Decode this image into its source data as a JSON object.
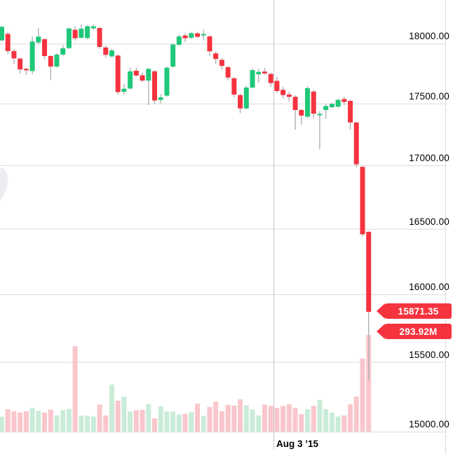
{
  "chart": {
    "date_axis_label": "Aug 3 ’15",
    "price_tag": "15871.35",
    "volume_tag": "293.92M",
    "price_ticks": [
      {
        "label": "18000.00",
        "value": 18000
      },
      {
        "label": "17500.00",
        "value": 17500
      },
      {
        "label": "17000.00",
        "value": 17000
      },
      {
        "label": "16500.00",
        "value": 16500
      },
      {
        "label": "16000.00",
        "value": 16000
      },
      {
        "label": "15500.00",
        "value": 15500
      },
      {
        "label": "15000.00",
        "value": 15000
      }
    ]
  },
  "colors": {
    "up": "#1fc878",
    "down": "#f5333f",
    "vol_up": "#c9ecd8",
    "vol_down": "#f9c6cc",
    "wick": "#b0b0b5",
    "grid": "#d9d9d9",
    "vgrid": "#c6c6c9",
    "tag_bg": "#f5333f",
    "tag_text": "#ffffff",
    "label_text": "#000000",
    "watermark": "#edeef2"
  },
  "chart_data": {
    "type": "candlestick_with_volume",
    "price_scale": "log",
    "visible_price_range": [
      14850,
      18375
    ],
    "price_gridlines": [
      18000,
      17500,
      17000,
      16500,
      16000,
      15500,
      15000
    ],
    "x_axis_tick": {
      "label": "Aug 3 ’15",
      "candle_index": 45
    },
    "last_close": 15871.35,
    "last_volume_label": "293.92M",
    "volume_unit": "M",
    "volume_max_value": 293.92,
    "candles_note": "each candle = [open, high, low, close, volume_millions], estimated from pixels",
    "candles": [
      [
        18030,
        18150,
        18020,
        18145,
        45
      ],
      [
        18085,
        18100,
        17915,
        17940,
        68
      ],
      [
        17940,
        17958,
        17829,
        17878,
        62
      ],
      [
        17876,
        17886,
        17751,
        17786,
        58
      ],
      [
        17790,
        17800,
        17740,
        17778,
        62
      ],
      [
        17772,
        18062,
        17745,
        18020,
        72
      ],
      [
        18012,
        18135,
        17995,
        18062,
        63
      ],
      [
        18040,
        18048,
        17869,
        17898,
        58
      ],
      [
        17898,
        17905,
        17698,
        17810,
        67
      ],
      [
        17810,
        17920,
        17800,
        17910,
        49
      ],
      [
        17910,
        17990,
        17895,
        17963,
        65
      ],
      [
        17965,
        18140,
        17958,
        18131,
        69
      ],
      [
        18120,
        18150,
        18028,
        18048,
        260
      ],
      [
        18052,
        18165,
        18045,
        18130,
        49
      ],
      [
        18050,
        18160,
        18040,
        18150,
        48
      ],
      [
        18132,
        18165,
        18120,
        18150,
        46
      ],
      [
        18135,
        18145,
        17960,
        17975,
        82
      ],
      [
        17970,
        17985,
        17883,
        17908,
        49
      ],
      [
        17895,
        17960,
        17885,
        17945,
        143
      ],
      [
        17902,
        17910,
        17577,
        17597,
        94
      ],
      [
        17600,
        17665,
        17577,
        17625,
        106
      ],
      [
        17627,
        17800,
        17620,
        17770,
        61
      ],
      [
        17775,
        17800,
        17725,
        17735,
        65
      ],
      [
        17737,
        17760,
        17680,
        17693,
        66
      ],
      [
        17693,
        17800,
        17490,
        17790,
        83
      ],
      [
        17770,
        17780,
        17500,
        17528,
        40
      ],
      [
        17533,
        17580,
        17505,
        17553,
        77
      ],
      [
        17568,
        17810,
        17560,
        17800,
        61
      ],
      [
        17810,
        18005,
        17800,
        17995,
        61
      ],
      [
        17993,
        18080,
        17985,
        18063,
        52
      ],
      [
        18072,
        18090,
        18015,
        18048,
        54
      ],
      [
        18052,
        18100,
        18040,
        18092,
        59
      ],
      [
        18090,
        18105,
        18050,
        18060,
        85
      ],
      [
        18072,
        18120,
        18030,
        18084,
        48
      ],
      [
        18064,
        18075,
        17900,
        17938,
        75
      ],
      [
        17920,
        17935,
        17829,
        17873,
        91
      ],
      [
        17866,
        17880,
        17782,
        17815,
        62
      ],
      [
        17805,
        17815,
        17694,
        17718,
        81
      ],
      [
        17712,
        17722,
        17555,
        17577,
        79
      ],
      [
        17573,
        17585,
        17423,
        17463,
        98
      ],
      [
        17463,
        17650,
        17455,
        17635,
        80
      ],
      [
        17635,
        17795,
        17628,
        17780,
        67
      ],
      [
        17745,
        17790,
        17674,
        17765,
        49
      ],
      [
        17768,
        17800,
        17740,
        17752,
        82
      ],
      [
        17748,
        17760,
        17640,
        17672,
        78
      ],
      [
        17690,
        17722,
        17592,
        17606,
        72
      ],
      [
        17616,
        17640,
        17545,
        17573,
        78
      ],
      [
        17577,
        17600,
        17520,
        17558,
        83
      ],
      [
        17558,
        17570,
        17290,
        17450,
        72
      ],
      [
        17450,
        17460,
        17330,
        17404,
        53
      ],
      [
        17395,
        17645,
        17385,
        17630,
        68
      ],
      [
        17602,
        17615,
        17380,
        17420,
        78
      ],
      [
        17408,
        17440,
        17133,
        17418,
        97
      ],
      [
        17450,
        17500,
        17378,
        17482,
        68
      ],
      [
        17473,
        17510,
        17460,
        17500,
        58
      ],
      [
        17477,
        17545,
        17468,
        17533,
        46
      ],
      [
        17540,
        17560,
        17490,
        17516,
        49
      ],
      [
        17525,
        17535,
        17290,
        17348,
        83
      ],
      [
        17348,
        17355,
        16985,
        17010,
        107
      ],
      [
        16990,
        16995,
        16445,
        16460,
        222
      ],
      [
        16480,
        16480,
        15370,
        15871.35,
        293.92
      ]
    ]
  }
}
